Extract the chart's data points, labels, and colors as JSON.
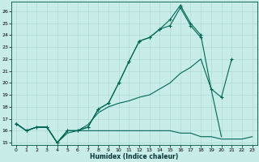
{
  "xlabel": "Humidex (Indice chaleur)",
  "bg_color": "#c8ede8",
  "grid_color": "#a8d8d0",
  "line_color": "#006655",
  "xlim": [
    -0.5,
    23.5
  ],
  "ylim": [
    14.8,
    26.8
  ],
  "yticks": [
    15,
    16,
    17,
    18,
    19,
    20,
    21,
    22,
    23,
    24,
    25,
    26
  ],
  "xticks": [
    0,
    1,
    2,
    3,
    4,
    5,
    6,
    7,
    8,
    9,
    10,
    11,
    12,
    13,
    14,
    15,
    16,
    17,
    18,
    19,
    20,
    21,
    22,
    23
  ],
  "line1_x": [
    0,
    1,
    2,
    3,
    4,
    5,
    6,
    7,
    8,
    9,
    10,
    11,
    12,
    13,
    14,
    15,
    16,
    17,
    18
  ],
  "line1_y": [
    16.6,
    16.0,
    16.3,
    16.3,
    15.0,
    16.0,
    16.0,
    16.3,
    17.8,
    18.3,
    20.0,
    21.8,
    23.5,
    23.8,
    24.5,
    24.8,
    26.3,
    24.8,
    23.8
  ],
  "line2_x": [
    0,
    1,
    2,
    3,
    4,
    5,
    6,
    7,
    8,
    9,
    10,
    11,
    12,
    13,
    14,
    15,
    16,
    17,
    18,
    19,
    20,
    21
  ],
  "line2_y": [
    16.6,
    16.0,
    16.3,
    16.3,
    15.0,
    16.0,
    16.0,
    16.3,
    17.8,
    18.3,
    20.0,
    21.8,
    23.5,
    23.8,
    24.5,
    25.3,
    26.5,
    25.0,
    24.0,
    19.5,
    18.8,
    22.0
  ],
  "line3_x": [
    0,
    1,
    2,
    3,
    4,
    5,
    6,
    7,
    8,
    9,
    10,
    11,
    12,
    13,
    14,
    15,
    16,
    17,
    18,
    19,
    20
  ],
  "line3_y": [
    16.6,
    16.0,
    16.3,
    16.3,
    15.0,
    16.0,
    16.0,
    16.5,
    17.5,
    18.0,
    18.3,
    18.5,
    18.8,
    19.0,
    19.5,
    20.0,
    20.8,
    21.3,
    22.0,
    19.5,
    15.5
  ],
  "line4_x": [
    0,
    1,
    2,
    3,
    4,
    5,
    6,
    7,
    8,
    9,
    10,
    11,
    12,
    13,
    14,
    15,
    16,
    17,
    18,
    19,
    20,
    21,
    22,
    23
  ],
  "line4_y": [
    16.6,
    16.0,
    16.3,
    16.3,
    15.0,
    15.8,
    16.0,
    16.0,
    16.0,
    16.0,
    16.0,
    16.0,
    16.0,
    16.0,
    16.0,
    16.0,
    15.8,
    15.8,
    15.5,
    15.5,
    15.3,
    15.3,
    15.3,
    15.5
  ]
}
